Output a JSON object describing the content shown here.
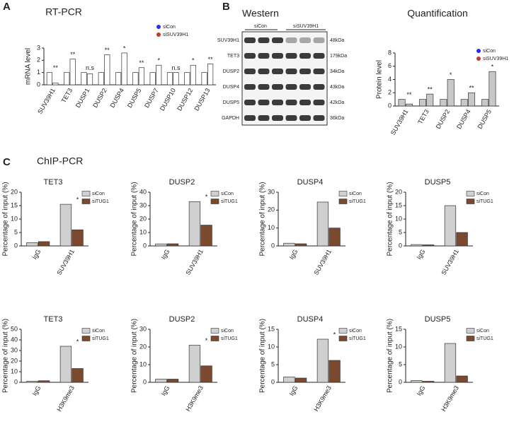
{
  "panel_labels": [
    "A",
    "B",
    "C"
  ],
  "section_title": "ChIP-PCR",
  "western": {
    "title": "Western",
    "groups": [
      "siCon",
      "siSUV39H1"
    ],
    "rows": [
      {
        "protein": "SUV39H1",
        "size": "48kDa"
      },
      {
        "protein": "TET3",
        "size": "179kDa"
      },
      {
        "protein": "DUSP2",
        "size": "34kDa"
      },
      {
        "protein": "DUSP4",
        "size": "43kDa"
      },
      {
        "protein": "DUSP5",
        "size": "42kDa"
      },
      {
        "protein": "GAPDH",
        "size": "36kDa"
      }
    ]
  },
  "chart_data": [
    {
      "type": "bar",
      "title": "RT-PCR",
      "y_label": "mRNA level",
      "legend_marker": "dot",
      "bar_fill": "#ffffff",
      "categories": [
        "SUV39H1",
        "TET3",
        "DUSP1",
        "DUSP2",
        "DUSP4",
        "DUSP5",
        "DUSP7",
        "DUSP10",
        "DUSP12",
        "DUSP13"
      ],
      "series": [
        {
          "name": "siCon",
          "color": "#2b2bff",
          "values": [
            1,
            1,
            1,
            1,
            1,
            1,
            1,
            1,
            1,
            1
          ]
        },
        {
          "name": "siSUV39H1",
          "color": "#c0392b",
          "values": [
            0.15,
            2.1,
            0.9,
            2.45,
            2.6,
            1.4,
            1.6,
            1.0,
            1.6,
            1.7
          ]
        }
      ],
      "significance": [
        "**",
        "**",
        "n.s",
        "**",
        "*",
        "**",
        "*",
        "n.s",
        "*",
        "**"
      ],
      "ylim": [
        0,
        3
      ],
      "yticks": [
        0,
        1,
        2,
        3
      ]
    },
    {
      "type": "bar",
      "title": "Quantification",
      "y_label": "Protein level",
      "legend_marker": "dot",
      "bar_fill": "#c8c8c8",
      "categories": [
        "SUV39H1",
        "TET3",
        "DUSP2",
        "DUSP4",
        "DUSP5"
      ],
      "series": [
        {
          "name": "siCon",
          "color": "#2b2bff",
          "values": [
            1,
            1,
            1,
            1,
            1
          ]
        },
        {
          "name": "siSUV39H1",
          "color": "#c0392b",
          "values": [
            0.3,
            1.8,
            4,
            2,
            5.2
          ]
        }
      ],
      "significance": [
        "**",
        "**",
        "*",
        "**",
        "*"
      ],
      "ylim": [
        0,
        8
      ],
      "yticks": [
        0,
        2,
        4,
        6,
        8
      ]
    },
    {
      "type": "bar",
      "title": "TET3",
      "y_label": "Percentage of input (%)",
      "legend_marker": "square",
      "categories": [
        "IgG",
        "SUV39H1"
      ],
      "series": [
        {
          "name": "siCon",
          "color": "#d0d0d0",
          "values": [
            1.2,
            15.5
          ]
        },
        {
          "name": "siTUG1",
          "color": "#7b4a2e",
          "values": [
            1.6,
            6
          ]
        }
      ],
      "significance": [
        null,
        "*"
      ],
      "ylim": [
        0,
        20
      ],
      "yticks": [
        0,
        5,
        10,
        15,
        20
      ]
    },
    {
      "type": "bar",
      "title": "DUSP2",
      "y_label": "Percentage of input (%)",
      "legend_marker": "square",
      "categories": [
        "IgG",
        "SUV39H1"
      ],
      "series": [
        {
          "name": "siCon",
          "color": "#d0d0d0",
          "values": [
            1.5,
            33
          ]
        },
        {
          "name": "siTUG1",
          "color": "#7b4a2e",
          "values": [
            1.6,
            15.5
          ]
        }
      ],
      "significance": [
        null,
        "*"
      ],
      "ylim": [
        0,
        40
      ],
      "yticks": [
        0,
        10,
        20,
        30,
        40
      ]
    },
    {
      "type": "bar",
      "title": "DUSP4",
      "y_label": "Percentage of input (%)",
      "legend_marker": "square",
      "categories": [
        "IgG",
        "SUV39H1"
      ],
      "series": [
        {
          "name": "siCon",
          "color": "#d0d0d0",
          "values": [
            1.5,
            24.5
          ]
        },
        {
          "name": "siTUG1",
          "color": "#7b4a2e",
          "values": [
            1.2,
            10
          ]
        }
      ],
      "ylim": [
        0,
        30
      ],
      "yticks": [
        0,
        10,
        20,
        30
      ]
    },
    {
      "type": "bar",
      "title": "DUSP5",
      "y_label": "Percentage of input (%)",
      "legend_marker": "square",
      "categories": [
        "IgG",
        "SUV39H1"
      ],
      "series": [
        {
          "name": "siCon",
          "color": "#d0d0d0",
          "values": [
            0.5,
            15
          ]
        },
        {
          "name": "siTUG1",
          "color": "#7b4a2e",
          "values": [
            0.4,
            5
          ]
        }
      ],
      "ylim": [
        0,
        20
      ],
      "yticks": [
        0,
        5,
        10,
        15,
        20
      ]
    },
    {
      "type": "bar",
      "title": "TET3",
      "y_label": "Percentage of input (%)",
      "legend_marker": "square",
      "categories": [
        "IgG",
        "H3K9me3"
      ],
      "series": [
        {
          "name": "siCon",
          "color": "#d0d0d0",
          "values": [
            1,
            34
          ]
        },
        {
          "name": "siTUG1",
          "color": "#7b4a2e",
          "values": [
            1.5,
            13
          ]
        }
      ],
      "significance": [
        null,
        "*"
      ],
      "ylim": [
        0,
        50
      ],
      "yticks": [
        0,
        10,
        20,
        30,
        40,
        50
      ]
    },
    {
      "type": "bar",
      "title": "DUSP2",
      "y_label": "Percentage of input (%)",
      "legend_marker": "square",
      "categories": [
        "IgG",
        "H3K9me3"
      ],
      "series": [
        {
          "name": "siCon",
          "color": "#d0d0d0",
          "values": [
            1.8,
            21
          ]
        },
        {
          "name": "siTUG1",
          "color": "#7b4a2e",
          "values": [
            1.8,
            9.3
          ]
        }
      ],
      "significance": [
        null,
        "*"
      ],
      "ylim": [
        0,
        30
      ],
      "yticks": [
        0,
        10,
        20,
        30
      ]
    },
    {
      "type": "bar",
      "title": "DUSP4",
      "y_label": "Percentage of input (%)",
      "legend_marker": "square",
      "categories": [
        "IgG",
        "H3K9me3"
      ],
      "series": [
        {
          "name": "siCon",
          "color": "#d0d0d0",
          "values": [
            1.5,
            12.2
          ]
        },
        {
          "name": "siTUG1",
          "color": "#7b4a2e",
          "values": [
            1.2,
            6.2
          ]
        }
      ],
      "significance": [
        null,
        "*"
      ],
      "ylim": [
        0,
        15
      ],
      "yticks": [
        0,
        5,
        10,
        15
      ]
    },
    {
      "type": "bar",
      "title": "DUSP5",
      "y_label": "Percentage of input (%)",
      "legend_marker": "square",
      "categories": [
        "IgG",
        "H3K9me3"
      ],
      "series": [
        {
          "name": "siCon",
          "color": "#d0d0d0",
          "values": [
            0.5,
            11
          ]
        },
        {
          "name": "siTUG1",
          "color": "#7b4a2e",
          "values": [
            0.3,
            1.8
          ]
        }
      ],
      "ylim": [
        0,
        15
      ],
      "yticks": [
        0,
        5,
        10,
        15
      ]
    }
  ]
}
